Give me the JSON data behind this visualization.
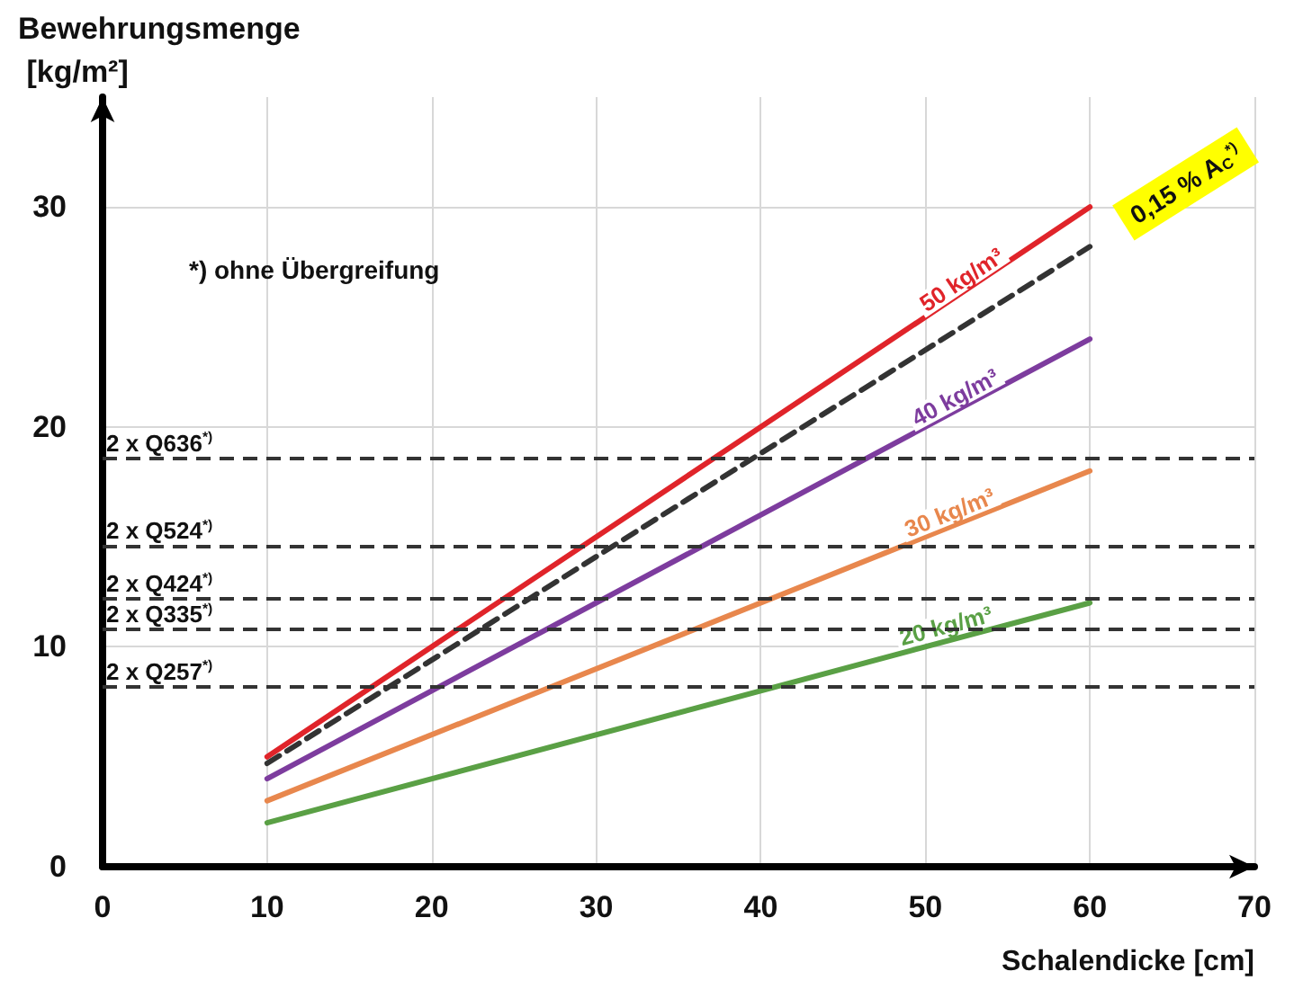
{
  "chart_data": {
    "type": "line",
    "xlabel": "Schalendicke [cm]",
    "ylabel": "Bewehrungsmenge [kg/m²]",
    "x": [
      10,
      60
    ],
    "series": [
      {
        "name": "50 kg/m³",
        "color": "#e0242a",
        "values": [
          5,
          30
        ]
      },
      {
        "name": "0,15 % A$_{C}$$^{*)}$",
        "color": "#333333",
        "values": [
          4.7,
          28.2
        ],
        "line_style": "dashed"
      },
      {
        "name": "40 kg/m³",
        "color": "#7d3c9e",
        "values": [
          4,
          24
        ]
      },
      {
        "name": "30 kg/m³",
        "color": "#e8874d",
        "values": [
          3,
          18
        ]
      },
      {
        "name": "20 kg/m³",
        "color": "#5aa045",
        "values": [
          2,
          12
        ]
      }
    ],
    "xlim": [
      0,
      70
    ],
    "xticks": [
      0,
      10,
      20,
      30,
      40,
      50,
      60,
      70
    ],
    "ylim": [
      0,
      35
    ],
    "yticks": [
      0,
      10,
      20,
      30
    ],
    "ref_lines": [
      {
        "axis": "y",
        "value": 18.6,
        "label": "2 x Q636$^{*)}$",
        "color": "#333333",
        "line_style": "dashed"
      },
      {
        "axis": "y",
        "value": 14.6,
        "label": "2 x Q524$^{*)}$",
        "color": "#333333",
        "line_style": "dashed"
      },
      {
        "axis": "y",
        "value": 12.2,
        "label": "2 x Q424$^{*)}$",
        "color": "#333333",
        "line_style": "dashed"
      },
      {
        "axis": "y",
        "value": 10.8,
        "label": "2 x Q335$^{*)}$",
        "color": "#333333",
        "line_style": "dashed"
      },
      {
        "axis": "y",
        "value": 8.2,
        "label": "2 x Q257$^{*)}$",
        "color": "#333333",
        "line_style": "dashed"
      }
    ],
    "annotations": [
      "*) ohne Übergreifung"
    ],
    "grid": true,
    "legend": false,
    "marker": "none",
    "line_style": "solid"
  }
}
